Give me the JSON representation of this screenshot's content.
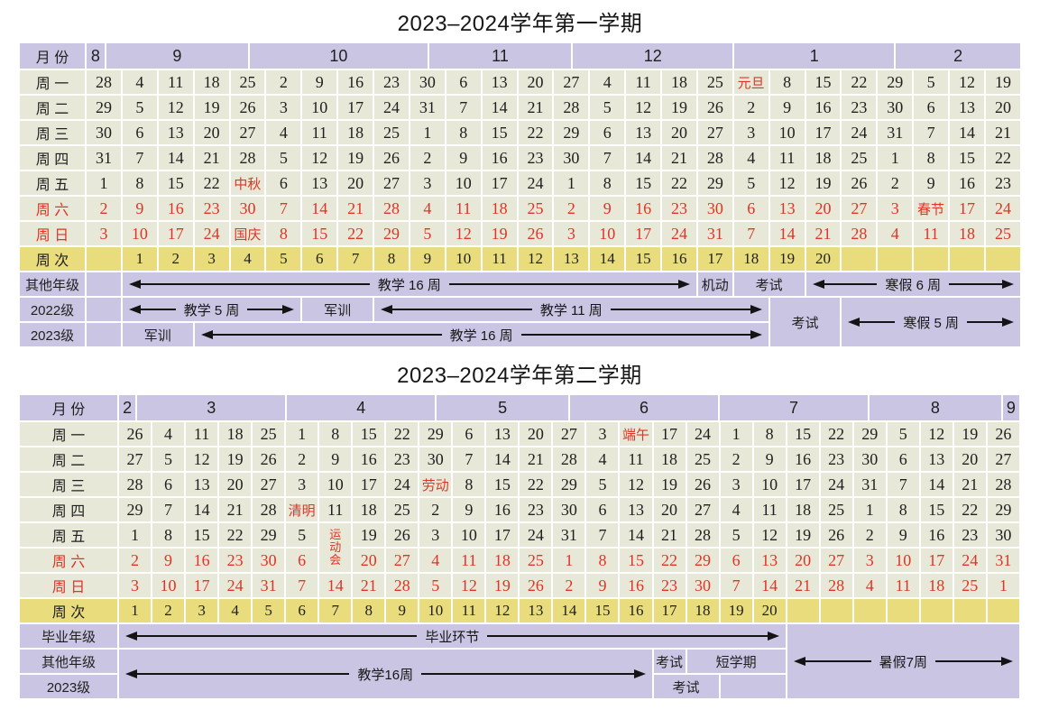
{
  "semesters": [
    {
      "id": "semester-1",
      "title": "2023–2024学年第一学期",
      "corner_label": "月 份",
      "label_col_width": 72,
      "data_cols": 26,
      "months": [
        {
          "label": "8",
          "units": 0.5
        },
        {
          "label": "9",
          "units": 4
        },
        {
          "label": "10",
          "units": 5
        },
        {
          "label": "11",
          "units": 4
        },
        {
          "label": "12",
          "units": 4.5
        },
        {
          "label": "1",
          "units": 4.5
        },
        {
          "label": "2",
          "units": 3.5
        }
      ],
      "day_rows": [
        {
          "label": "周 一",
          "red": false,
          "cells": [
            "28",
            "4",
            "11",
            "18",
            "25",
            "2",
            "9",
            "16",
            "23",
            "30",
            "6",
            "13",
            "20",
            "27",
            "4",
            "11",
            "18",
            "25",
            {
              "t": "元旦",
              "red": true
            },
            "8",
            "15",
            "22",
            "29",
            "5",
            "12",
            "19"
          ]
        },
        {
          "label": "周 二",
          "red": false,
          "cells": [
            "29",
            "5",
            "12",
            "19",
            "26",
            "3",
            "10",
            "17",
            "24",
            "31",
            "7",
            "14",
            "21",
            "28",
            "5",
            "12",
            "19",
            "26",
            "2",
            "9",
            "16",
            "23",
            "30",
            "6",
            "13",
            "20"
          ]
        },
        {
          "label": "周 三",
          "red": false,
          "cells": [
            "30",
            "6",
            "13",
            "20",
            "27",
            "4",
            "11",
            "18",
            "25",
            "1",
            "8",
            "15",
            "22",
            "29",
            "6",
            "13",
            "20",
            "27",
            "3",
            "10",
            "17",
            "24",
            "31",
            "7",
            "14",
            "21"
          ]
        },
        {
          "label": "周 四",
          "red": false,
          "cells": [
            "31",
            "7",
            "14",
            "21",
            "28",
            "5",
            "12",
            "19",
            "26",
            "2",
            "9",
            "16",
            "23",
            "30",
            "7",
            "14",
            "21",
            "28",
            "4",
            "11",
            "18",
            "25",
            "1",
            "8",
            "15",
            "22"
          ]
        },
        {
          "label": "周 五",
          "red": false,
          "cells": [
            "1",
            "8",
            "15",
            "22",
            {
              "t": "中秋",
              "red": true
            },
            "6",
            "13",
            "20",
            "27",
            "3",
            "10",
            "17",
            "24",
            "1",
            "8",
            "15",
            "22",
            "29",
            "5",
            "12",
            "19",
            "26",
            "2",
            "9",
            "16",
            "23"
          ]
        },
        {
          "label": "周 六",
          "red": true,
          "cells": [
            "2",
            "9",
            "16",
            "23",
            "30",
            "7",
            "14",
            "21",
            "28",
            "4",
            "11",
            "18",
            "25",
            "2",
            "9",
            "16",
            "23",
            "30",
            "6",
            "13",
            "20",
            "27",
            "3",
            {
              "t": "春节",
              "red": true
            },
            "17",
            "24"
          ]
        },
        {
          "label": "周 日",
          "red": true,
          "cells": [
            "3",
            "10",
            "17",
            "24",
            {
              "t": "国庆",
              "red": true
            },
            "8",
            "15",
            "22",
            "29",
            "5",
            "12",
            "19",
            "26",
            "3",
            "10",
            "17",
            "24",
            "31",
            "7",
            "14",
            "21",
            "28",
            "4",
            "11",
            "18",
            "25"
          ]
        }
      ],
      "week_row": {
        "label": "周 次",
        "cells": [
          "",
          "1",
          "2",
          "3",
          "4",
          "5",
          "6",
          "7",
          "8",
          "9",
          "10",
          "11",
          "12",
          "13",
          "14",
          "15",
          "16",
          "17",
          "18",
          "19",
          "20",
          "",
          "",
          "",
          "",
          ""
        ]
      },
      "schedule_rows": [
        {
          "label": "其他年级",
          "cells": [
            {
              "type": "empty",
              "span": 1
            },
            {
              "type": "arrow",
              "text": "教学 16 周",
              "span": 16
            },
            {
              "type": "text",
              "text": "机动",
              "span": 1
            },
            {
              "type": "text",
              "text": "考试",
              "span": 2
            },
            {
              "type": "arrow",
              "text": "寒假 6 周",
              "span": 6
            }
          ]
        },
        {
          "label": "2022级",
          "cells": [
            {
              "type": "empty",
              "span": 1
            },
            {
              "type": "arrow",
              "text": "教学 5 周",
              "span": 5
            },
            {
              "type": "text",
              "text": "军训",
              "span": 2
            },
            {
              "type": "arrow",
              "text": "教学 11 周",
              "span": 11
            },
            {
              "type": "text",
              "text": "考试",
              "span": 2,
              "rowspan": 2
            },
            {
              "type": "arrow",
              "text": "寒假 5 周",
              "span": 5,
              "rowspan": 2
            }
          ]
        },
        {
          "label": "2023级",
          "cells": [
            {
              "type": "empty",
              "span": 1
            },
            {
              "type": "text",
              "text": "军训",
              "span": 2
            },
            {
              "type": "arrow",
              "text": "教学 16 周",
              "span": 16
            }
          ]
        }
      ]
    },
    {
      "id": "semester-2",
      "title": "2023–2024学年第二学期",
      "corner_label": "月 份",
      "label_col_width": 108,
      "data_cols": 27,
      "months": [
        {
          "label": "2",
          "units": 0.5
        },
        {
          "label": "3",
          "units": 4.5
        },
        {
          "label": "4",
          "units": 4.5
        },
        {
          "label": "5",
          "units": 4
        },
        {
          "label": "6",
          "units": 4.5
        },
        {
          "label": "7",
          "units": 4.5
        },
        {
          "label": "8",
          "units": 4
        },
        {
          "label": "9",
          "units": 0.5
        }
      ],
      "day_rows": [
        {
          "label": "周 一",
          "red": false,
          "cells": [
            "26",
            "4",
            "11",
            "18",
            "25",
            "1",
            "8",
            "15",
            "22",
            "29",
            "6",
            "13",
            "20",
            "27",
            "3",
            {
              "t": "端午",
              "red": true
            },
            "17",
            "24",
            "1",
            "8",
            "15",
            "22",
            "29",
            "5",
            "12",
            "19",
            "26"
          ]
        },
        {
          "label": "周 二",
          "red": false,
          "cells": [
            "27",
            "5",
            "12",
            "19",
            "26",
            "2",
            "9",
            "16",
            "23",
            "30",
            "7",
            "14",
            "21",
            "28",
            "4",
            "11",
            "18",
            "25",
            "2",
            "9",
            "16",
            "23",
            "30",
            "6",
            "13",
            "20",
            "27"
          ]
        },
        {
          "label": "周 三",
          "red": false,
          "cells": [
            "28",
            "6",
            "13",
            "20",
            "27",
            "3",
            "10",
            "17",
            "24",
            {
              "t": "劳动",
              "red": true
            },
            "8",
            "15",
            "22",
            "29",
            "5",
            "12",
            "19",
            "26",
            "3",
            "10",
            "17",
            "24",
            "31",
            "7",
            "14",
            "21",
            "28"
          ]
        },
        {
          "label": "周 四",
          "red": false,
          "cells": [
            "29",
            "7",
            "14",
            "21",
            "28",
            {
              "t": "清明",
              "red": true
            },
            "11",
            "18",
            "25",
            "2",
            "9",
            "16",
            "23",
            "30",
            "6",
            "13",
            "20",
            "27",
            "4",
            "11",
            "18",
            "25",
            "1",
            "8",
            "15",
            "22",
            "29"
          ]
        },
        {
          "label": "周 五",
          "red": false,
          "cells": [
            "1",
            "8",
            "15",
            "22",
            "29",
            "5",
            {
              "t": "运动会",
              "red": true,
              "rowspan": 2,
              "vertical": true
            },
            "19",
            "26",
            "3",
            "10",
            "17",
            "24",
            "31",
            "7",
            "14",
            "21",
            "28",
            "5",
            "12",
            "19",
            "26",
            "2",
            "9",
            "16",
            "23",
            "30"
          ]
        },
        {
          "label": "周 六",
          "red": true,
          "cells": [
            "2",
            "9",
            "16",
            "23",
            "30",
            "6",
            {
              "skip": true
            },
            "20",
            "27",
            "4",
            "11",
            "18",
            "25",
            "1",
            "8",
            "15",
            "22",
            "29",
            "6",
            "13",
            "20",
            "27",
            "3",
            "10",
            "17",
            "24",
            "31"
          ]
        },
        {
          "label": "周 日",
          "red": true,
          "cells": [
            "3",
            "10",
            "17",
            "24",
            "31",
            "7",
            "14",
            "21",
            "28",
            "5",
            "12",
            "19",
            "26",
            "2",
            "9",
            "16",
            "23",
            "30",
            "7",
            "14",
            "21",
            "28",
            "4",
            "11",
            "18",
            "25",
            "1"
          ]
        }
      ],
      "week_row": {
        "label": "周 次",
        "cells": [
          "1",
          "2",
          "3",
          "4",
          "5",
          "6",
          "7",
          "8",
          "9",
          "10",
          "11",
          "12",
          "13",
          "14",
          "15",
          "16",
          "17",
          "18",
          "19",
          "20",
          "",
          "",
          "",
          "",
          "",
          "",
          ""
        ]
      },
      "schedule_rows": [
        {
          "label": "毕业年级",
          "cells": [
            {
              "type": "arrow",
              "text": "毕业环节",
              "span": 20
            },
            {
              "type": "arrow",
              "text": "暑假7周",
              "span": 7,
              "rowspan": 3
            }
          ]
        },
        {
          "label": "其他年级",
          "cells": [
            {
              "type": "arrow",
              "text": "教学16周",
              "span": 16,
              "rowspan": 2
            },
            {
              "type": "text",
              "text": "考试",
              "span": 1
            },
            {
              "type": "text",
              "text": "短学期",
              "span": 3
            }
          ]
        },
        {
          "label": "2023级",
          "cells": [
            {
              "type": "text",
              "text": "考试",
              "span": 2
            },
            {
              "type": "empty",
              "span": 2
            }
          ]
        }
      ]
    }
  ],
  "colors": {
    "header_purple": "#c9c5e2",
    "day_bg": "#e7e8d7",
    "week_yellow": "#e9dc7c",
    "holiday_red": "#dd3527",
    "text": "#1f1f1f"
  }
}
